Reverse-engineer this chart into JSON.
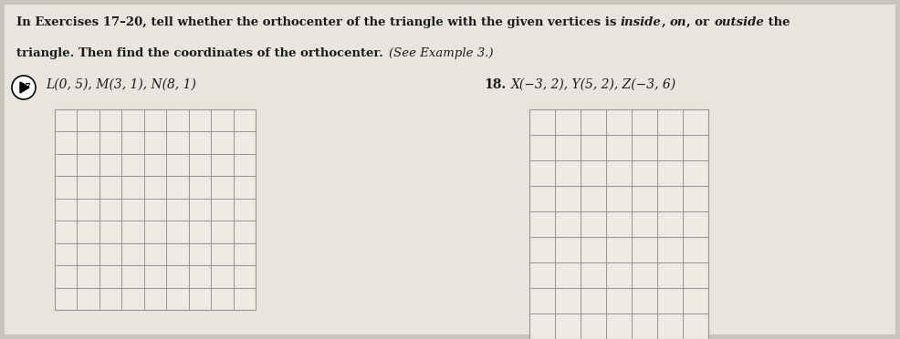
{
  "bg_color": "#c8c4bc",
  "paper_color": "#e8e5df",
  "grid_color": "#9a9490",
  "grid_fill": "#edeae4",
  "text_color": "#1a1a1a",
  "seg1": "In Exercises 17–20, tell whether the orthocenter of the triangle with the given vertices is ",
  "seg2": "inside",
  "seg3": ", ",
  "seg4": "on",
  "seg5": ", or ",
  "seg6": "outside",
  "seg7": " the",
  "line2a": "triangle. Then find the coordinates of the orthocenter. ",
  "line2b": "(See Example 3.)",
  "label17_coords": "L(0, 5), M(3, 1), N(8, 1)",
  "label18_coords": "X(−3, 2), Y(5, 2), Z(−3, 6)",
  "grid1_ncols": 9,
  "grid1_nrows": 9,
  "grid2_ncols": 7,
  "grid2_nrows": 9,
  "fs_header": 9.5,
  "fs_label": 10.0,
  "fs_num": 8.0
}
